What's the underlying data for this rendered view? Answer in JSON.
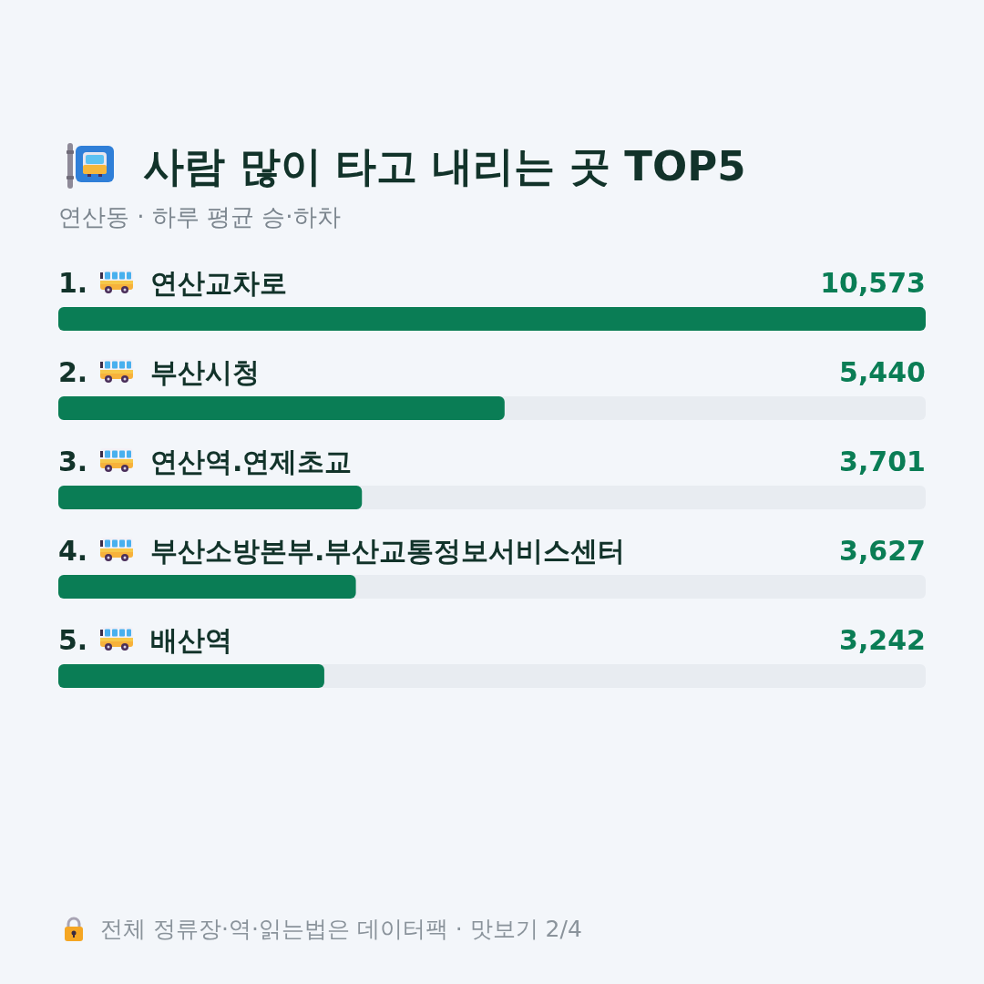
{
  "chart_data": {
    "type": "bar",
    "orientation": "horizontal",
    "title": "사람 많이 타고 내리는 곳 TOP5",
    "subtitle": "연산동 · 하루 평균 승·하차",
    "categories": [
      "1. 연산교차로",
      "2. 부산시청",
      "3. 연산역.연제초교",
      "4. 부산소방본부.부산교통정보서비스센터",
      "5. 배산역"
    ],
    "values": [
      10573,
      5440,
      3701,
      3627,
      3242
    ],
    "value_labels": [
      "10,573",
      "5,440",
      "3,701",
      "3,627",
      "3,242"
    ],
    "color": "#0a7d55",
    "tick_labels": "y",
    "annotations": [
      "전체 정류장·역·읽는법은 데이터팩 · 맛보기 2/4"
    ]
  }
}
